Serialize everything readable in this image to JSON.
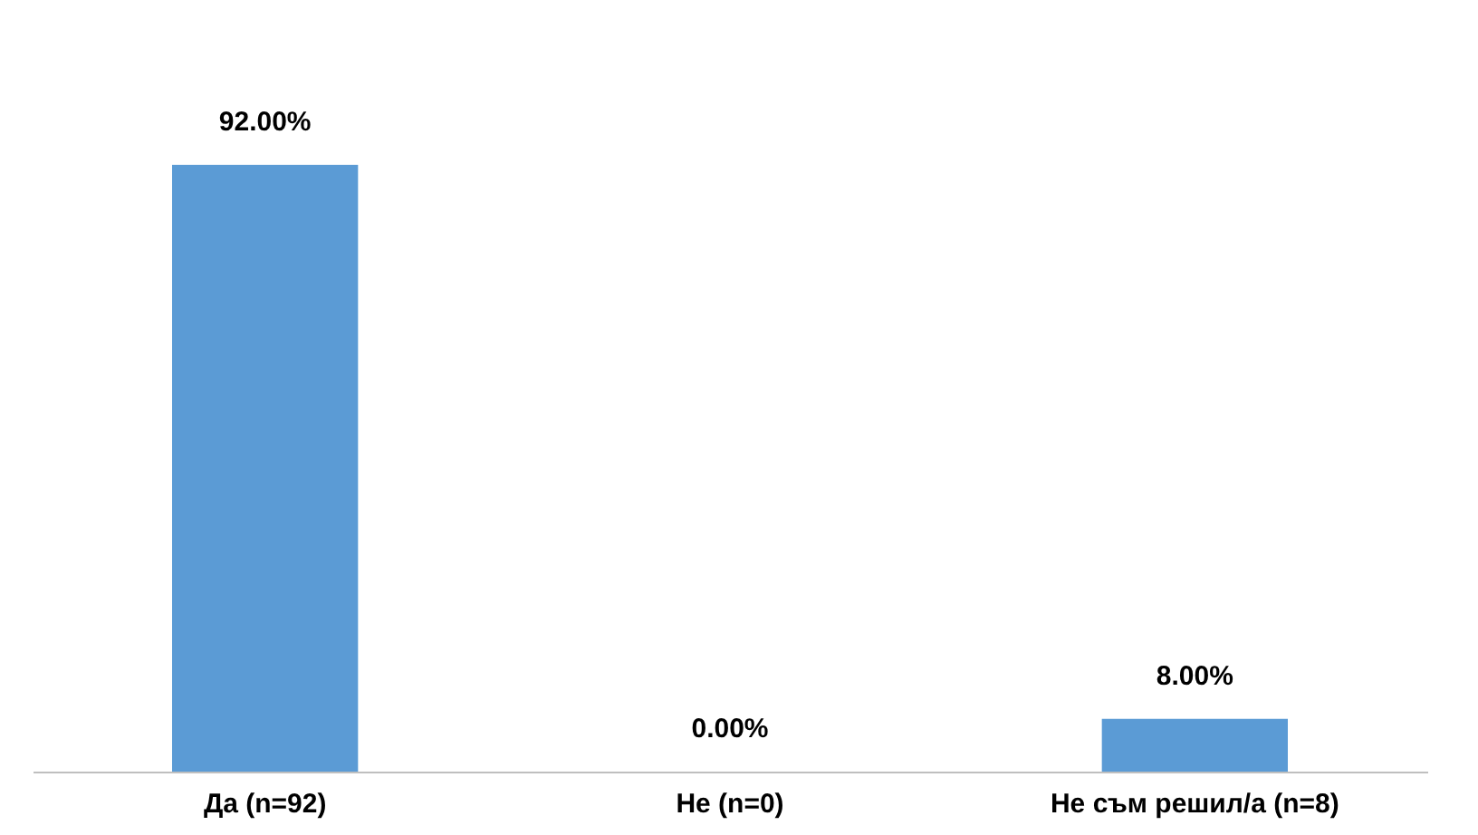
{
  "chart_data": {
    "type": "bar",
    "categories": [
      "Да (n=92)",
      "Не (n=0)",
      "Не съм решил/а (n=8)"
    ],
    "values": [
      92,
      0,
      8
    ],
    "value_labels": [
      "92.00%",
      "0.00%",
      "8.00%"
    ],
    "color": "#5b9bd5",
    "grid": false
  }
}
